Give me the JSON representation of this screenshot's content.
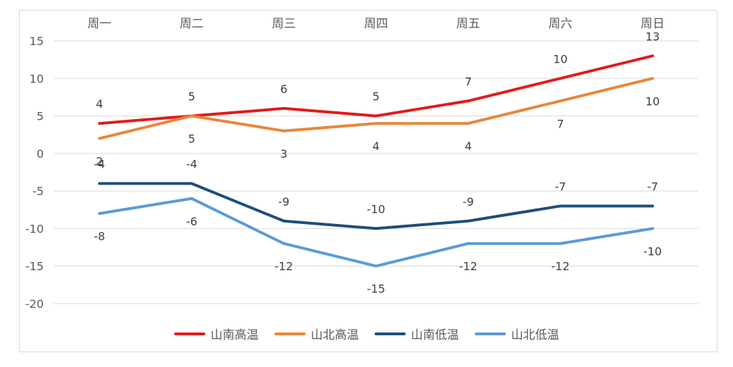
{
  "chart_data": {
    "type": "line",
    "title": "",
    "xlabel": "",
    "ylabel": "",
    "categories": [
      "周一",
      "周二",
      "周三",
      "周四",
      "周五",
      "周六",
      "周日"
    ],
    "ylim": [
      -20,
      15
    ],
    "yticks": [
      15,
      10,
      5,
      0,
      -5,
      -10,
      -15,
      -20
    ],
    "grid": true,
    "legend_position": "bottom",
    "series": [
      {
        "name": "山南高温",
        "color": "#e31a1c",
        "values": [
          4,
          5,
          6,
          5,
          7,
          10,
          13
        ],
        "label_pos": "above"
      },
      {
        "name": "山北高温",
        "color": "#e8873a",
        "values": [
          2,
          5,
          3,
          4,
          4,
          7,
          10
        ],
        "label_pos": "below"
      },
      {
        "name": "山南低温",
        "color": "#1f4e79",
        "values": [
          -4,
          -4,
          -9,
          -10,
          -9,
          -7,
          -7
        ],
        "label_pos": "above"
      },
      {
        "name": "山北低温",
        "color": "#5b9bd5",
        "values": [
          -8,
          -6,
          -12,
          -15,
          -12,
          -12,
          -10
        ],
        "label_pos": "below"
      }
    ]
  }
}
